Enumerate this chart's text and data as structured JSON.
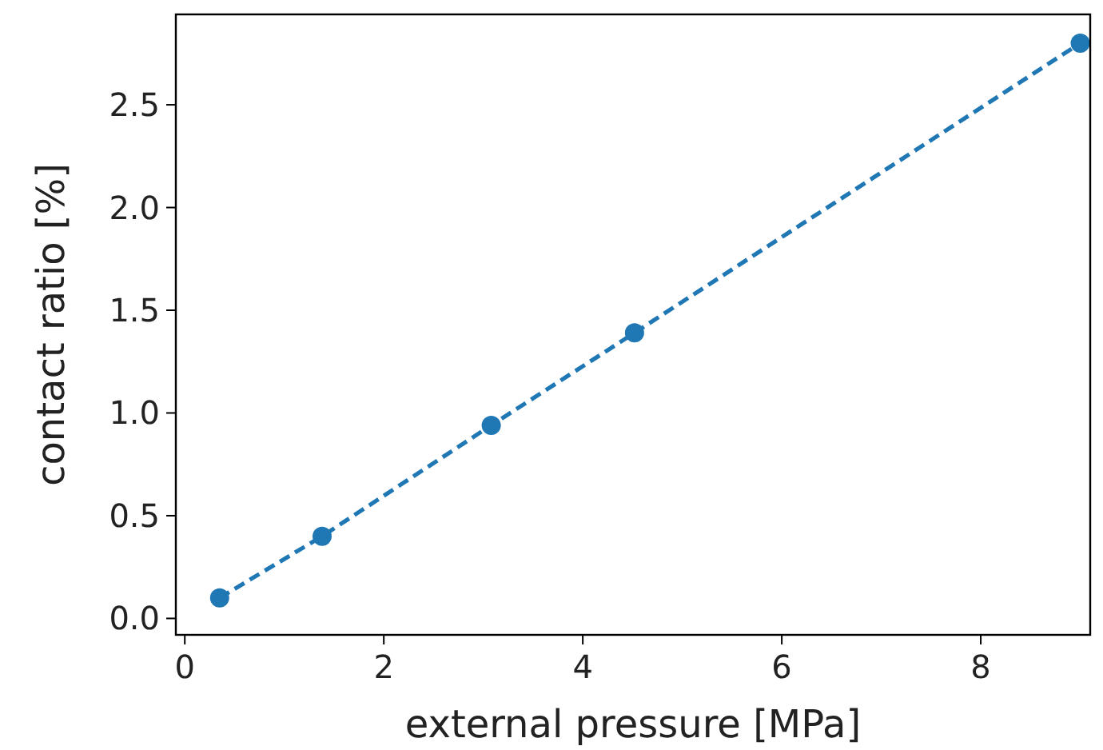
{
  "chart_data": {
    "type": "line",
    "xlabel": "external pressure [MPa]",
    "ylabel": "contact ratio [%]",
    "x": [
      0.35,
      1.38,
      3.08,
      4.52,
      9.0
    ],
    "series": [
      {
        "color": "#1f77b4",
        "values": [
          0.1,
          0.4,
          0.94,
          1.39,
          2.8
        ]
      }
    ],
    "xlim": [
      -0.09,
      9.1
    ],
    "ylim": [
      -0.08,
      2.94
    ],
    "xticks": [
      0,
      2,
      4,
      6,
      8
    ],
    "yticks": [
      {
        "value": 0,
        "label": "0.0"
      },
      {
        "value": 0.5,
        "label": "0.5"
      },
      {
        "value": 1,
        "label": "1.0"
      },
      {
        "value": 1.5,
        "label": "1.5"
      },
      {
        "value": 2,
        "label": "2.0"
      },
      {
        "value": 2.5,
        "label": "2.5"
      }
    ],
    "grid": false,
    "marker": "circle",
    "line_style": "dashed"
  }
}
